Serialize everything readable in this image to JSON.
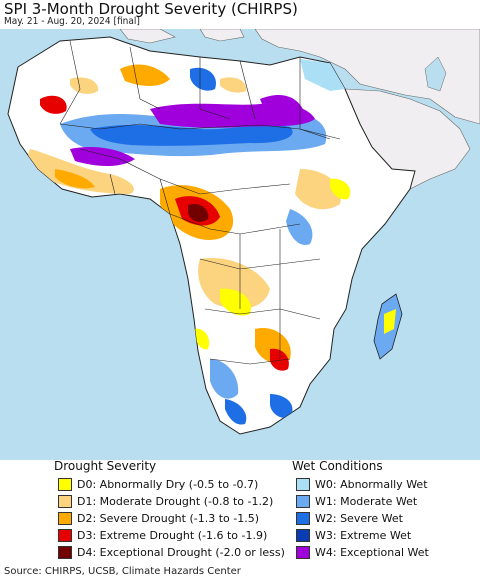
{
  "header": {
    "title": "SPI 3-Month Drought Severity (CHIRPS)",
    "subtitle": "May. 21 - Aug. 20, 2024 [final]"
  },
  "map": {
    "region": "Africa",
    "colors": {
      "ocean": "#b9deef",
      "outside_land": "#f0eef0",
      "land_normal": "#ffffff",
      "borders": "#111111"
    }
  },
  "legend": {
    "drought": {
      "title": "Drought Severity",
      "items": [
        {
          "label": "D0: Abnormally Dry (-0.5 to -0.7)",
          "color": "#ffff00"
        },
        {
          "label": "D1: Moderate Drought (-0.8 to -1.2)",
          "color": "#fcd37f"
        },
        {
          "label": "D2: Severe Drought (-1.3 to -1.5)",
          "color": "#ffaa00"
        },
        {
          "label": "D3: Extreme Drought (-1.6 to -1.9)",
          "color": "#e60000"
        },
        {
          "label": "D4: Exceptional Drought (-2.0 or less)",
          "color": "#730000"
        }
      ]
    },
    "wet": {
      "title": "Wet Conditions",
      "items": [
        {
          "label": "W0: Abnormally Wet",
          "color": "#aadff5"
        },
        {
          "label": "W1: Moderate Wet",
          "color": "#6baaf0"
        },
        {
          "label": "W2: Severe Wet",
          "color": "#1e6ee6"
        },
        {
          "label": "W3: Extreme Wet",
          "color": "#0a3cb4"
        },
        {
          "label": "W4: Exceptional Wet",
          "color": "#a000dc"
        }
      ]
    }
  },
  "footer": {
    "source": "Source: CHIRPS, UCSB, Climate Hazards Center"
  }
}
